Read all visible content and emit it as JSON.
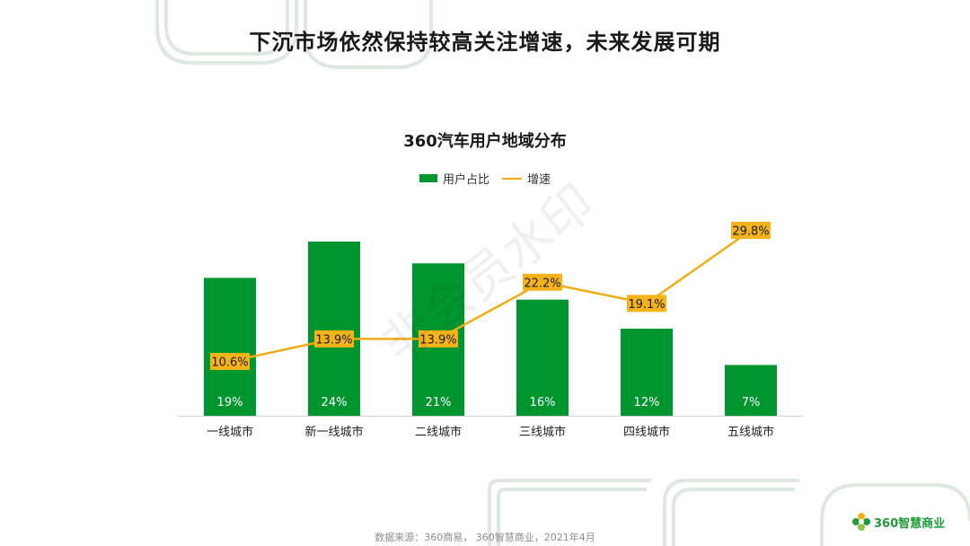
{
  "page": {
    "title": "下沉市场依然保持较高关注增速，未来发展可期",
    "source": "数据来源：360商易， 360智慧商业，2021年4月",
    "brand_name": "360智慧商业",
    "watermark": "非会员水印"
  },
  "colors": {
    "bar": "#00962f",
    "line": "#f2ac12",
    "label_bg": "#f5b31a",
    "axis": "#d0d0d0",
    "deco": "#dde8df"
  },
  "chart_data": {
    "type": "bar",
    "title": "360汽车用户地域分布",
    "categories": [
      "一线城市",
      "新一线城市",
      "二线城市",
      "三线城市",
      "四线城市",
      "五线城市"
    ],
    "series": [
      {
        "name": "用户占比",
        "type": "bar",
        "values": [
          19,
          24,
          21,
          16,
          12,
          7
        ],
        "labels": [
          "19%",
          "24%",
          "21%",
          "16%",
          "12%",
          "7%"
        ]
      },
      {
        "name": "增速",
        "type": "line",
        "values": [
          10.6,
          13.9,
          13.9,
          22.2,
          19.1,
          29.8
        ],
        "labels": [
          "10.6%",
          "13.9%",
          "13.9%",
          "22.2%",
          "19.1%",
          "29.8%"
        ]
      }
    ],
    "legend_position": "top-center",
    "grid": false
  }
}
